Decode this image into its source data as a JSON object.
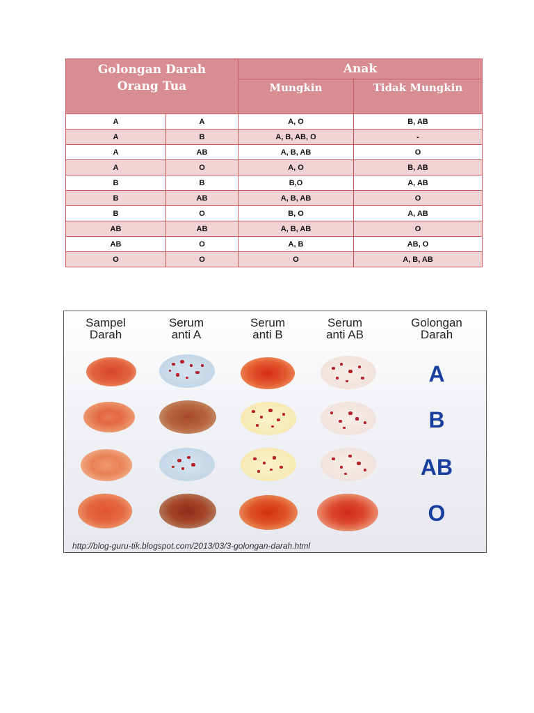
{
  "table": {
    "header": {
      "parents": "Golongan Darah Orang Tua",
      "child": "Anak",
      "possible": "Mungkin",
      "impossible": "Tidak Mungkin"
    },
    "rows": [
      {
        "p1": "A",
        "p2": "A",
        "possible": "A, O",
        "impossible": "B, AB"
      },
      {
        "p1": "A",
        "p2": "B",
        "possible": "A, B, AB, O",
        "impossible": "-"
      },
      {
        "p1": "A",
        "p2": "AB",
        "possible": "A, B, AB",
        "impossible": "O"
      },
      {
        "p1": "A",
        "p2": "O",
        "possible": "A, O",
        "impossible": "B, AB"
      },
      {
        "p1": "B",
        "p2": "B",
        "possible": "B,O",
        "impossible": "A, AB"
      },
      {
        "p1": "B",
        "p2": "AB",
        "possible": "A, B, AB",
        "impossible": "O"
      },
      {
        "p1": "B",
        "p2": "O",
        "possible": "B, O",
        "impossible": "A, AB"
      },
      {
        "p1": "AB",
        "p2": "AB",
        "possible": "A, B, AB",
        "impossible": "O"
      },
      {
        "p1": "AB",
        "p2": "O",
        "possible": "A, B",
        "impossible": "AB, O"
      },
      {
        "p1": "O",
        "p2": "O",
        "possible": "O",
        "impossible": "A, B, AB"
      }
    ]
  },
  "test_panel": {
    "columns": [
      {
        "line1": "Sampel",
        "line2": "Darah"
      },
      {
        "line1": "Serum",
        "line2": "anti A"
      },
      {
        "line1": "Serum",
        "line2": "anti B"
      },
      {
        "line1": "Serum",
        "line2": "anti AB"
      },
      {
        "line1": "Golongan",
        "line2": "Darah"
      }
    ],
    "results": [
      "A",
      "B",
      "AB",
      "O"
    ],
    "source_url": "http://blog-guru-tik.blogspot.com/2013/03/3-golongan-darah.html"
  },
  "colors": {
    "table_header": "#d78d92",
    "table_border": "#c65a5f",
    "row_shaded": "#f2d3d5",
    "result_label": "#1b3f9e",
    "clump": "#b5232a"
  }
}
